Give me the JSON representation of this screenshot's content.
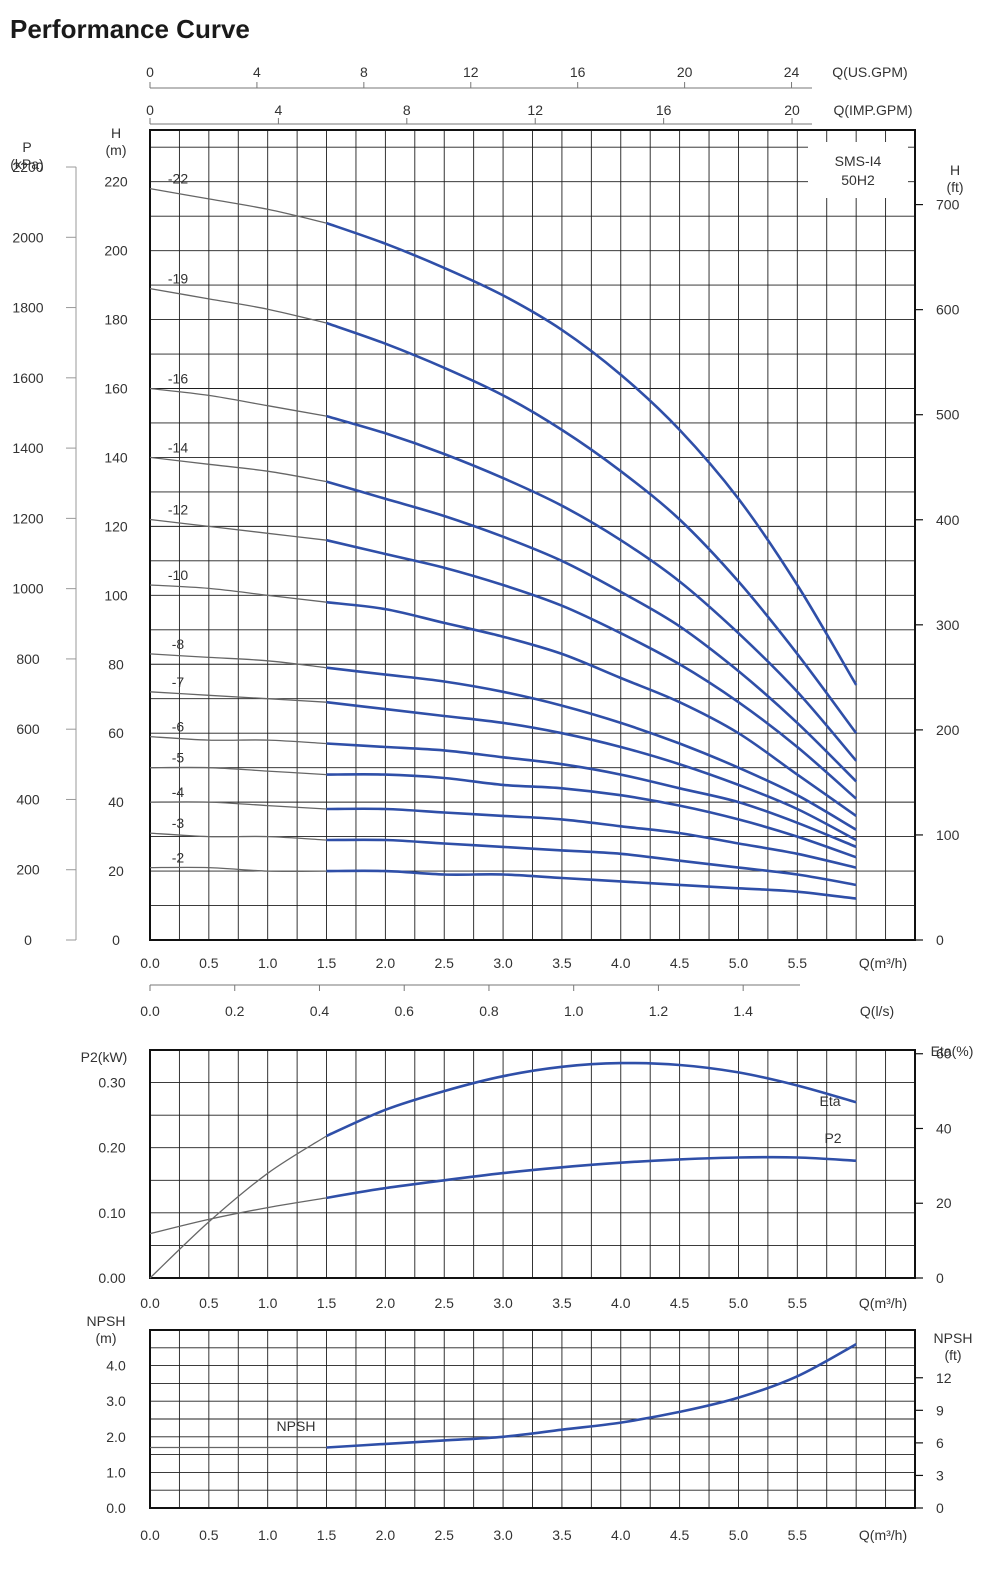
{
  "page": {
    "title": "Performance Curve"
  },
  "colors": {
    "curve": "#2f4fa8",
    "thin": "#666666",
    "grid": "#1f1f1f",
    "text": "#333333"
  },
  "chart_data": [
    {
      "id": "head",
      "type": "line",
      "model_label": [
        "SMS-I4",
        "50H2"
      ],
      "xlim": [
        0,
        6.5
      ],
      "ylim": [
        0,
        235
      ],
      "x_ticks": [
        "0.0",
        "0.5",
        "1.0",
        "1.5",
        "2.0",
        "2.5",
        "3.0",
        "3.5",
        "4.0",
        "4.5",
        "5.0",
        "5.5"
      ],
      "x_axis_label": "Q(m³/h)",
      "y_left_label": [
        "H",
        "(m)"
      ],
      "y_left_ticks": [
        "0",
        "20",
        "40",
        "60",
        "80",
        "100",
        "120",
        "140",
        "160",
        "180",
        "200",
        "220"
      ],
      "p_axis_label": [
        "P",
        "(kPa)"
      ],
      "p_axis_ticks": [
        "0",
        "200",
        "400",
        "600",
        "800",
        "1000",
        "1200",
        "1400",
        "1600",
        "1800",
        "2000",
        "2200"
      ],
      "right_axis_label": [
        "H",
        "(ft)"
      ],
      "right_axis_ticks": [
        "0",
        "100",
        "200",
        "300",
        "400",
        "500",
        "600",
        "700"
      ],
      "top_axis_us": {
        "label": "Q(US.GPM)",
        "ticks": [
          "0",
          "4",
          "8",
          "12",
          "16",
          "20",
          "24"
        ]
      },
      "top_axis_imp": {
        "label": "Q(IMP.GPM)",
        "ticks": [
          "0",
          "4",
          "8",
          "12",
          "16",
          "20"
        ]
      },
      "bottom_axis_ls": {
        "label": "Q(l/s)",
        "ticks": [
          "0.0",
          "0.2",
          "0.4",
          "0.6",
          "0.8",
          "1.0",
          "1.2",
          "1.4"
        ]
      },
      "x": [
        0,
        0.5,
        1.0,
        1.5,
        2.0,
        2.5,
        3.0,
        3.5,
        4.0,
        4.5,
        5.0,
        5.5,
        6.0
      ],
      "operating_range_start": 1.5,
      "series": [
        {
          "name": "-22",
          "values": [
            218,
            215,
            212,
            208,
            202,
            195,
            187,
            177,
            164,
            148,
            128,
            103,
            74
          ]
        },
        {
          "name": "-19",
          "values": [
            189,
            186,
            183,
            179,
            173,
            166,
            158,
            148,
            136,
            122,
            104,
            83,
            60
          ]
        },
        {
          "name": "-16",
          "values": [
            160,
            158,
            155,
            152,
            147,
            141,
            134,
            126,
            116,
            104,
            89,
            72,
            52
          ]
        },
        {
          "name": "-14",
          "values": [
            140,
            138,
            136,
            133,
            128,
            123,
            117,
            110,
            101,
            91,
            78,
            63,
            46
          ]
        },
        {
          "name": "-12",
          "values": [
            122,
            120,
            118,
            116,
            112,
            108,
            103,
            97,
            89,
            80,
            69,
            56,
            41
          ]
        },
        {
          "name": "-10",
          "values": [
            103,
            102,
            100,
            98,
            96,
            92,
            88,
            83,
            76,
            69,
            60,
            48,
            36
          ]
        },
        {
          "name": "-8",
          "values": [
            83,
            82,
            81,
            79,
            77,
            75,
            72,
            68,
            63,
            57,
            50,
            42,
            32
          ]
        },
        {
          "name": "-7",
          "values": [
            72,
            71,
            70,
            69,
            67,
            65,
            63,
            60,
            56,
            51,
            45,
            38,
            29
          ]
        },
        {
          "name": "-6",
          "values": [
            59,
            58,
            58,
            57,
            56,
            55,
            53,
            51,
            48,
            44,
            40,
            34,
            27
          ]
        },
        {
          "name": "-5",
          "values": [
            50,
            50,
            49,
            48,
            48,
            47,
            45,
            44,
            42,
            39,
            35,
            30,
            24
          ]
        },
        {
          "name": "-4",
          "values": [
            40,
            40,
            39,
            38,
            38,
            37,
            36,
            35,
            33,
            31,
            28,
            25,
            21
          ]
        },
        {
          "name": "-3",
          "values": [
            31,
            30,
            30,
            29,
            29,
            28,
            27,
            26,
            25,
            23,
            21,
            19,
            16
          ]
        },
        {
          "name": "-2",
          "values": [
            21,
            21,
            20,
            20,
            20,
            19,
            19,
            18,
            17,
            16,
            15,
            14,
            12
          ]
        }
      ]
    },
    {
      "id": "power-efficiency",
      "type": "line",
      "xlim": [
        0,
        6.5
      ],
      "x_ticks": [
        "0.0",
        "0.5",
        "1.0",
        "1.5",
        "2.0",
        "2.5",
        "3.0",
        "3.5",
        "4.0",
        "4.5",
        "5.0",
        "5.5"
      ],
      "x_axis_label": "Q(m³/h)",
      "y_left_label": "P2(kW)",
      "y_left_ticks": [
        "0.00",
        "0.10",
        "0.20",
        "0.30"
      ],
      "ylim": [
        0,
        0.35
      ],
      "y_right_label": "Eta(%)",
      "y_right_ticks": [
        "0",
        "20",
        "40",
        "60"
      ],
      "y_right_lim": [
        0,
        61
      ],
      "x": [
        0,
        0.5,
        1.0,
        1.5,
        2.0,
        2.5,
        3.0,
        3.5,
        4.0,
        4.5,
        5.0,
        5.5,
        6.0
      ],
      "operating_range_start": 1.5,
      "series": [
        {
          "name": "Eta",
          "axis": "right",
          "values": [
            0,
            15,
            28,
            38,
            45,
            50,
            54,
            56.5,
            57.5,
            57,
            55,
            51.5,
            47
          ]
        },
        {
          "name": "P2",
          "axis": "left",
          "values": [
            0.068,
            0.09,
            0.108,
            0.123,
            0.138,
            0.15,
            0.161,
            0.17,
            0.177,
            0.182,
            0.185,
            0.185,
            0.18
          ]
        }
      ]
    },
    {
      "id": "npsh",
      "type": "line",
      "xlim": [
        0,
        6.5
      ],
      "x_ticks": [
        "0.0",
        "0.5",
        "1.0",
        "1.5",
        "2.0",
        "2.5",
        "3.0",
        "3.5",
        "4.0",
        "4.5",
        "5.0",
        "5.5"
      ],
      "x_axis_label": "Q(m³/h)",
      "y_left_label": [
        "NPSH",
        "(m)"
      ],
      "y_left_ticks": [
        "0.0",
        "1.0",
        "2.0",
        "3.0",
        "4.0"
      ],
      "ylim": [
        0,
        5.0
      ],
      "y_right_label": [
        "NPSH",
        "(ft)"
      ],
      "y_right_ticks": [
        "0",
        "3",
        "6",
        "9",
        "12"
      ],
      "y_right_max": 16.4,
      "x": [
        0,
        0.5,
        1.0,
        1.5,
        2.0,
        2.5,
        3.0,
        3.5,
        4.0,
        4.5,
        5.0,
        5.5,
        6.0
      ],
      "operating_range_start": 1.5,
      "series": [
        {
          "name": "NPSH",
          "values": [
            1.7,
            1.7,
            1.7,
            1.7,
            1.8,
            1.9,
            2.0,
            2.2,
            2.4,
            2.7,
            3.1,
            3.7,
            4.6
          ]
        }
      ]
    }
  ]
}
